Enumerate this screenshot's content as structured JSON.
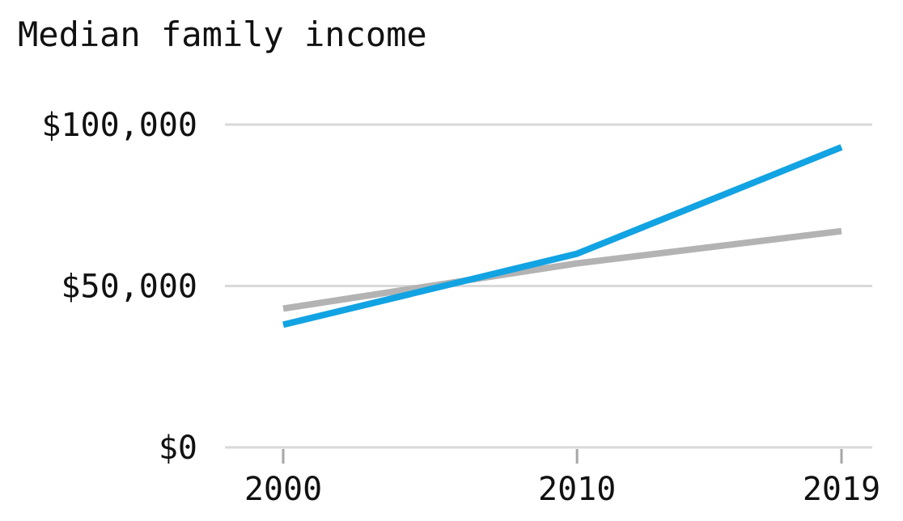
{
  "chart_data": {
    "type": "line",
    "title": "Median family income",
    "xlabel": "",
    "ylabel": "",
    "x": [
      2000,
      2010,
      2019
    ],
    "xticks": [
      "2000",
      "2010",
      "2019"
    ],
    "yticks": [
      {
        "value": 0,
        "label": "$0"
      },
      {
        "value": 50000,
        "label": "$50,000"
      },
      {
        "value": 100000,
        "label": "$100,000"
      }
    ],
    "ylim": [
      0,
      100000
    ],
    "xlim": [
      2000,
      2019
    ],
    "grid": "horizontal",
    "series": [
      {
        "color": "#b3b3b3",
        "values": [
          43000,
          57000,
          67000
        ]
      },
      {
        "color": "#12a3e3",
        "values": [
          38000,
          60000,
          93000
        ]
      }
    ]
  }
}
